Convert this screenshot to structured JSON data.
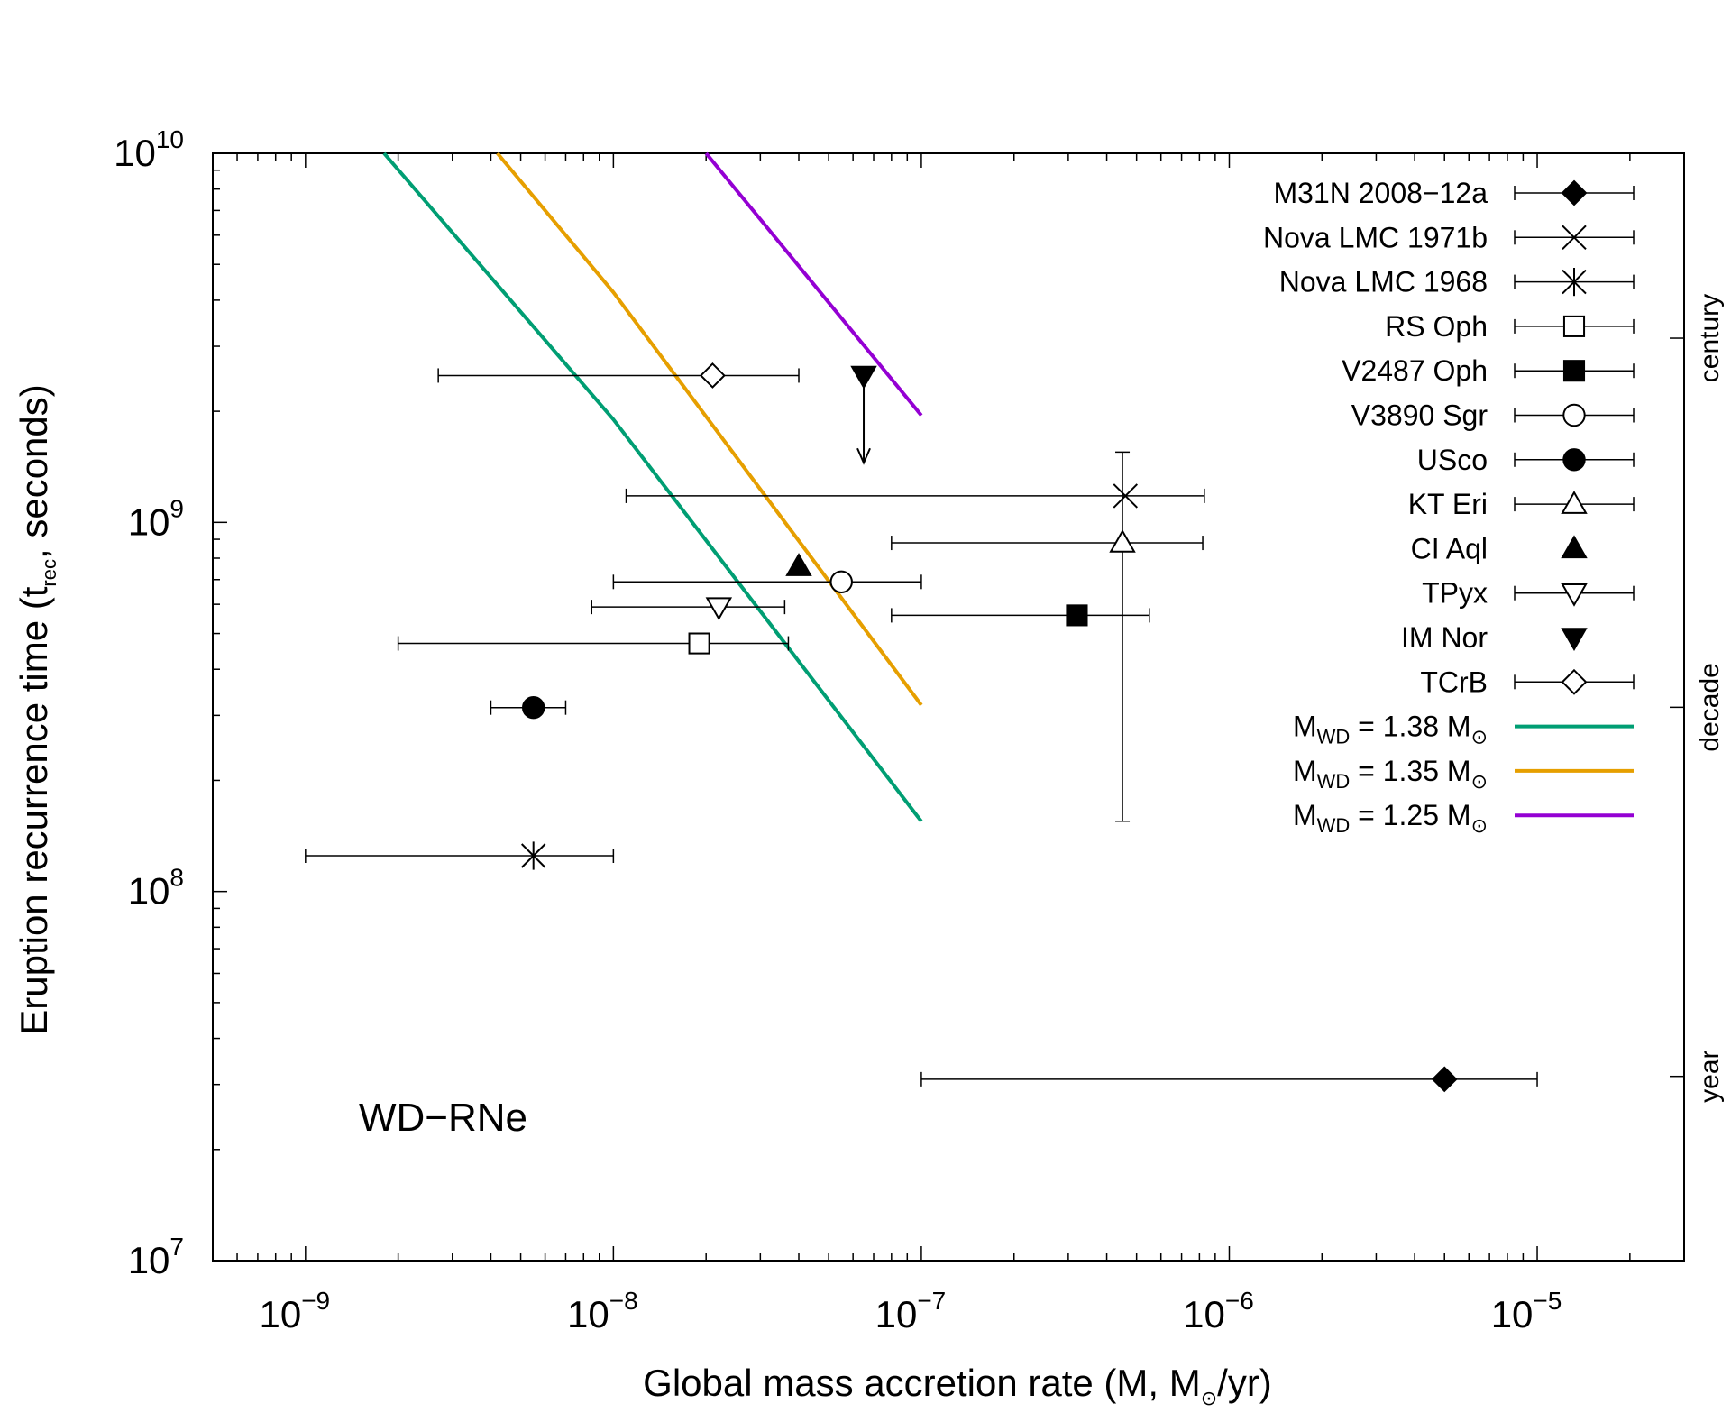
{
  "chart_data": {
    "type": "scatter",
    "title": "",
    "x_scale": "log",
    "y_scale": "log",
    "xlim": [
      5e-10,
      3e-05
    ],
    "ylim": [
      10000000.0,
      10000000000.0
    ],
    "xlabel": {
      "pre": "Global mass accretion rate (",
      "mdot": "M",
      "comma": ", M",
      "sun": "⊙",
      "post": "/yr)"
    },
    "ylabel": {
      "pre": "Eruption recurrence time (t",
      "sub": "rec",
      "post": ", seconds)"
    },
    "x_ticks": [
      {
        "value": 1e-09,
        "base": "10",
        "exp": "−9"
      },
      {
        "value": 1e-08,
        "base": "10",
        "exp": "−8"
      },
      {
        "value": 1e-07,
        "base": "10",
        "exp": "−7"
      },
      {
        "value": 1e-06,
        "base": "10",
        "exp": "−6"
      },
      {
        "value": 1e-05,
        "base": "10",
        "exp": "−5"
      }
    ],
    "y_ticks": [
      {
        "value": 10000000.0,
        "base": "10",
        "exp": "7"
      },
      {
        "value": 100000000.0,
        "base": "10",
        "exp": "8"
      },
      {
        "value": 1000000000.0,
        "base": "10",
        "exp": "9"
      },
      {
        "value": 10000000000.0,
        "base": "10",
        "exp": "10"
      }
    ],
    "right_axis_ticks": [
      {
        "value": 31557600,
        "label": "year"
      },
      {
        "value": 315576000,
        "label": "decade"
      },
      {
        "value": 3155760000,
        "label": "century"
      }
    ],
    "annotation": "WD−RNe",
    "points": [
      {
        "name": "M31N 2008−12a",
        "marker": "diamond",
        "filled": true,
        "x": 5e-06,
        "y": 31000000.0,
        "xerr": [
          1e-07,
          1e-05
        ],
        "yerr": null
      },
      {
        "name": "Nova LMC 1971b",
        "marker": "x",
        "filled": false,
        "x": 4.6e-07,
        "y": 1180000000.0,
        "xerr": [
          1.1e-08,
          8.3e-07
        ],
        "yerr": null
      },
      {
        "name": "Nova LMC 1968",
        "marker": "star",
        "filled": false,
        "x": 5.5e-09,
        "y": 125000000.0,
        "xerr": [
          1e-09,
          1e-08
        ],
        "yerr": null
      },
      {
        "name": "RS Oph",
        "marker": "square",
        "filled": false,
        "x": 1.9e-08,
        "y": 470000000.0,
        "xerr": [
          2e-09,
          3.7e-08
        ],
        "yerr": null
      },
      {
        "name": "V2487 Oph",
        "marker": "square",
        "filled": true,
        "x": 3.2e-07,
        "y": 560000000.0,
        "xerr": [
          8e-08,
          5.5e-07
        ],
        "yerr": null
      },
      {
        "name": "V3890 Sgr",
        "marker": "circle",
        "filled": false,
        "x": 5.5e-08,
        "y": 690000000.0,
        "xerr": [
          1e-08,
          1e-07
        ],
        "yerr": null
      },
      {
        "name": "USco",
        "marker": "circle",
        "filled": true,
        "x": 5.5e-09,
        "y": 315000000.0,
        "xerr": [
          4e-09,
          7e-09
        ],
        "yerr": null
      },
      {
        "name": "KT Eri",
        "marker": "triangle-up",
        "filled": false,
        "x": 4.5e-07,
        "y": 880000000.0,
        "xerr": [
          8e-08,
          8.2e-07
        ],
        "yerr": [
          155000000.0,
          1550000000.0
        ]
      },
      {
        "name": "CI Aql",
        "marker": "triangle-up",
        "filled": true,
        "x": 4e-08,
        "y": 760000000.0,
        "xerr": null,
        "yerr": null
      },
      {
        "name": "TPyx",
        "marker": "triangle-down",
        "filled": false,
        "x": 2.2e-08,
        "y": 590000000.0,
        "xerr": [
          8.5e-09,
          3.6e-08
        ],
        "yerr": null
      },
      {
        "name": "IM Nor",
        "marker": "triangle-down",
        "filled": true,
        "x": 6.5e-08,
        "y": 2500000000.0,
        "xerr": null,
        "yerr": null,
        "upper_limit_to": 1450000000.0
      },
      {
        "name": "TCrB",
        "marker": "diamond",
        "filled": false,
        "x": 2.1e-08,
        "y": 2500000000.0,
        "xerr": [
          2.7e-09,
          4e-08
        ],
        "yerr": null
      }
    ],
    "series": [
      {
        "name": "1.38",
        "label_pre": "M",
        "label_sub": "WD",
        "label_post": " = 1.38 M",
        "sun": "⊙",
        "color": "#009E73",
        "points": [
          [
            1.8e-09,
            10000000000.0
          ],
          [
            1e-08,
            1900000000.0
          ],
          [
            1e-07,
            155000000.0
          ]
        ]
      },
      {
        "name": "1.35",
        "label_pre": "M",
        "label_sub": "WD",
        "label_post": " = 1.35 M",
        "sun": "⊙",
        "color": "#E69F00",
        "points": [
          [
            4.2e-09,
            10000000000.0
          ],
          [
            1e-08,
            4200000000.0
          ],
          [
            1e-07,
            320000000.0
          ]
        ]
      },
      {
        "name": "1.25",
        "label_pre": "M",
        "label_sub": "WD",
        "label_post": " = 1.25 M",
        "sun": "⊙",
        "color": "#9400D3",
        "points": [
          [
            2e-08,
            10000000000.0
          ],
          [
            1e-07,
            1950000000.0
          ]
        ]
      }
    ],
    "legend_position": "top-right"
  }
}
